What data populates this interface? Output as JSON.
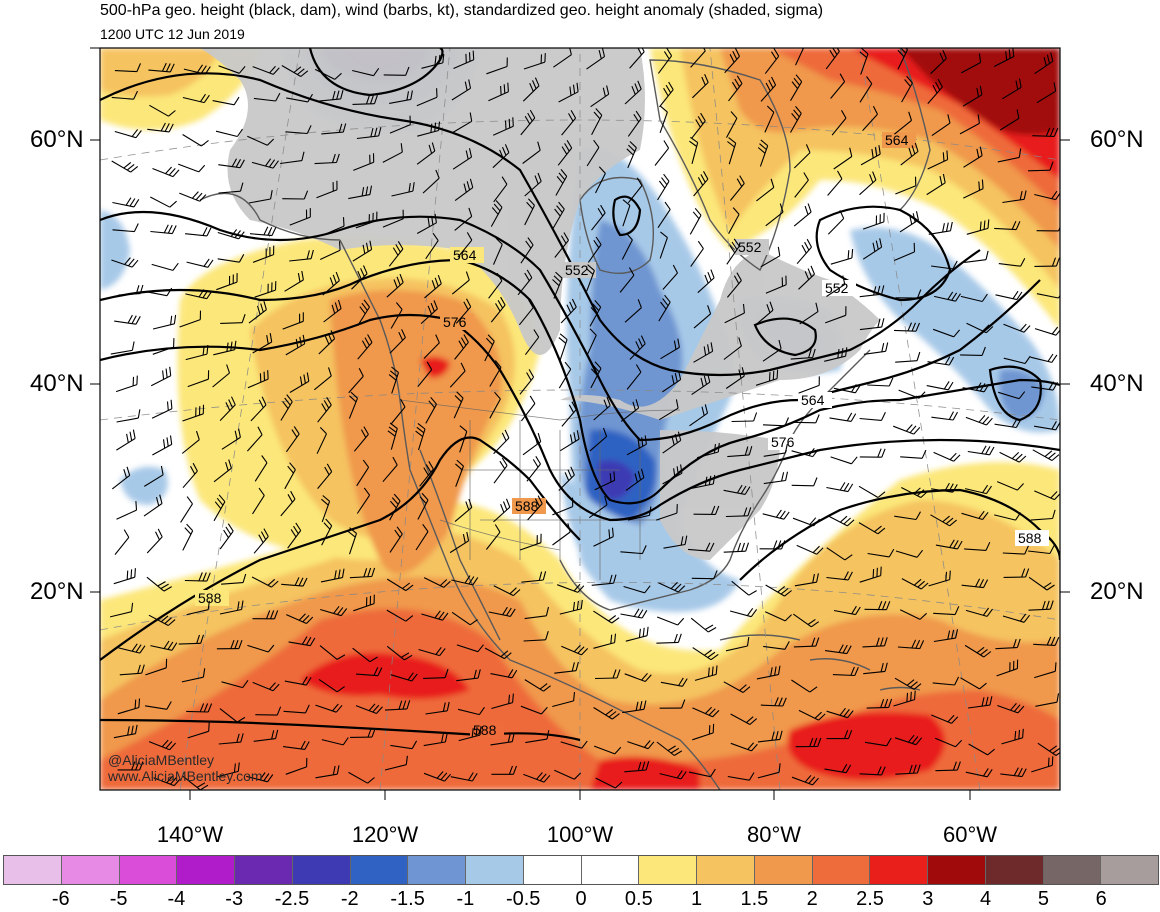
{
  "header": {
    "title": "500-hPa geo. height (black, dam), wind (barbs, kt), standardized geo. height anomaly (shaded, sigma)",
    "valid_time": "1200 UTC 12 Jun 2019"
  },
  "credits": [
    "@AliciaMBentley",
    "www.AliciaMBentley.com"
  ],
  "lat_labels": [
    "60°N",
    "40°N",
    "20°N"
  ],
  "lon_labels": [
    "140°W",
    "120°W",
    "100°W",
    "80°W",
    "60°W"
  ],
  "contour_labels": [
    "564",
    "576",
    "552",
    "588",
    "564",
    "576",
    "552",
    "564",
    "552",
    "588",
    "588",
    "588"
  ],
  "colorbar": {
    "colors": [
      "#e8bfe8",
      "#e68ae6",
      "#d94dd9",
      "#b01cc9",
      "#6b28b0",
      "#3d3ab4",
      "#2f62c2",
      "#6f96d2",
      "#a7c9e8",
      "#ffffff",
      "#ffffff",
      "#fce77a",
      "#f5c360",
      "#f0984c",
      "#ee6b3b",
      "#e81f1a",
      "#a10a0a",
      "#6e2a2a",
      "#766766",
      "#a89d9d"
    ],
    "labels": [
      "-6",
      "-5",
      "-4",
      "-3",
      "-2.5",
      "-2",
      "-1.5",
      "-1",
      "-0.5",
      "0",
      "0.5",
      "1",
      "1.5",
      "2",
      "2.5",
      "3",
      "4",
      "5",
      "6"
    ]
  },
  "colors": {
    "land_gray": "#c8c8c8",
    "coast": "#5a5a5a",
    "contour": "#000000"
  }
}
